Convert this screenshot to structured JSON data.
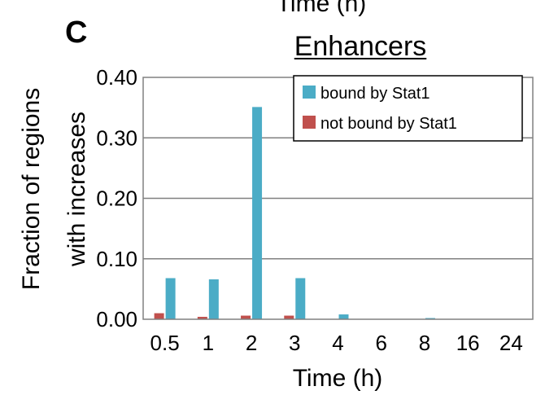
{
  "top_cut_label": "Time (h)",
  "panel_label": "C",
  "chart_data": {
    "type": "bar",
    "title": "Enhancers",
    "xlabel": "Time (h)",
    "ylabel": [
      "Fraction of regions",
      "with increases"
    ],
    "categories": [
      "0.5",
      "1",
      "2",
      "3",
      "4",
      "6",
      "8",
      "16",
      "24"
    ],
    "ylim": [
      0,
      0.4
    ],
    "yticks": [
      "0.00",
      "0.10",
      "0.20",
      "0.30",
      "0.40"
    ],
    "grid": true,
    "legend_position": "top-right",
    "series": [
      {
        "name": "bound by Stat1",
        "color": "#4bacc6",
        "values": [
          0.068,
          0.066,
          0.351,
          0.068,
          0.008,
          0.0,
          0.002,
          0.0,
          0.0
        ]
      },
      {
        "name": "not bound by Stat1",
        "color": "#c0504d",
        "values": [
          0.01,
          0.004,
          0.006,
          0.006,
          0.0,
          0.0,
          0.0,
          0.0,
          0.0
        ]
      }
    ]
  }
}
